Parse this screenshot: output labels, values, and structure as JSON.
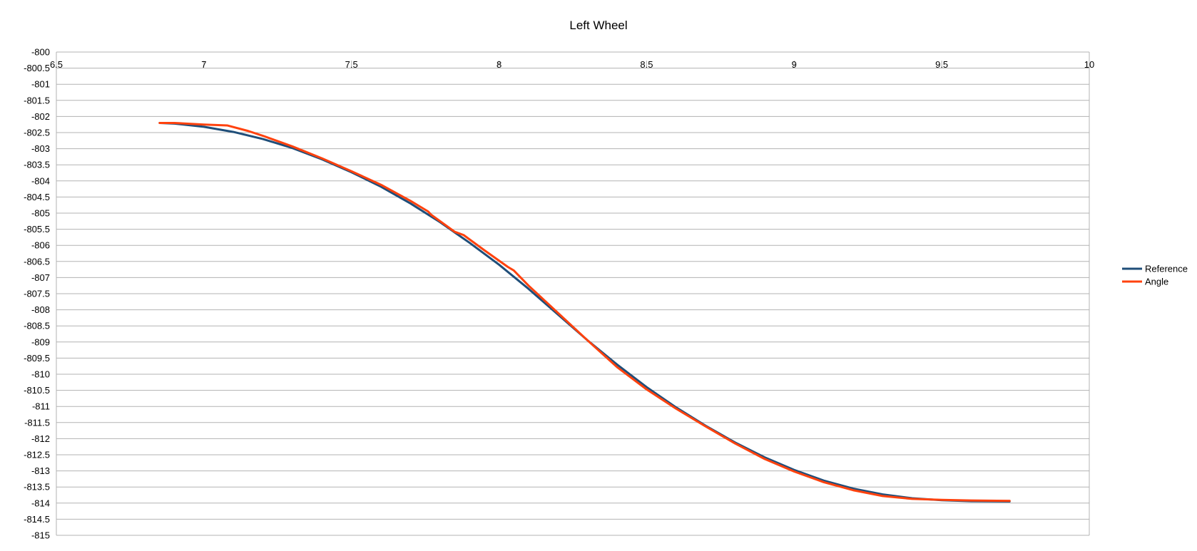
{
  "chart_data": {
    "type": "line",
    "title": "Left Wheel",
    "xlabel": "",
    "ylabel": "",
    "xlim": [
      6.5,
      10
    ],
    "ylim": [
      -815,
      -800
    ],
    "x_ticks": [
      6.5,
      7,
      7.5,
      8,
      8.5,
      9,
      9.5,
      10
    ],
    "x_tick_labels": [
      "6.5",
      "7",
      "7.5",
      "8",
      "8.5",
      "9",
      "9.5",
      "10"
    ],
    "y_ticks": [
      -800,
      -800.5,
      -801,
      -801.5,
      -802,
      -802.5,
      -803,
      -803.5,
      -804,
      -804.5,
      -805,
      -805.5,
      -806,
      -806.5,
      -807,
      -807.5,
      -808,
      -808.5,
      -809,
      -809.5,
      -810,
      -810.5,
      -811,
      -811.5,
      -812,
      -812.5,
      -813,
      -813.5,
      -814,
      -814.5,
      -815
    ],
    "y_tick_labels": [
      "-800",
      "-800.5",
      "-801",
      "-801.5",
      "-802",
      "-802.5",
      "-803",
      "-803.5",
      "-804",
      "-804.5",
      "-805",
      "-805.5",
      "-806",
      "-806.5",
      "-807",
      "-807.5",
      "-808",
      "-808.5",
      "-809",
      "-809.5",
      "-810",
      "-810.5",
      "-811",
      "-811.5",
      "-812",
      "-812.5",
      "-813",
      "-813.5",
      "-814",
      "-814.5",
      "-815"
    ],
    "x_axis_position": "top",
    "grid": true,
    "legend": "right",
    "series": [
      {
        "name": "Reference",
        "color": "#1f4e79",
        "x": [
          6.85,
          6.9,
          7.0,
          7.1,
          7.2,
          7.3,
          7.4,
          7.5,
          7.6,
          7.7,
          7.8,
          7.9,
          8.0,
          8.1,
          8.2,
          8.3,
          8.4,
          8.5,
          8.6,
          8.7,
          8.8,
          8.9,
          9.0,
          9.1,
          9.2,
          9.3,
          9.4,
          9.5,
          9.6,
          9.73
        ],
        "y": [
          -802.2,
          -802.22,
          -802.32,
          -802.48,
          -802.7,
          -802.98,
          -803.33,
          -803.73,
          -804.18,
          -804.7,
          -805.28,
          -805.92,
          -806.6,
          -807.35,
          -808.15,
          -808.95,
          -809.7,
          -810.4,
          -811.03,
          -811.6,
          -812.12,
          -812.58,
          -812.97,
          -813.3,
          -813.55,
          -813.73,
          -813.85,
          -813.91,
          -813.94,
          -813.95
        ]
      },
      {
        "name": "Angle",
        "color": "#ff420e",
        "x": [
          6.85,
          6.9,
          7.0,
          7.08,
          7.15,
          7.2,
          7.3,
          7.4,
          7.5,
          7.6,
          7.7,
          7.76,
          7.77,
          7.85,
          7.88,
          7.95,
          8.03,
          8.05,
          8.1,
          8.2,
          8.3,
          8.4,
          8.5,
          8.6,
          8.7,
          8.8,
          8.9,
          9.0,
          9.1,
          9.2,
          9.3,
          9.4,
          9.5,
          9.6,
          9.73
        ],
        "y": [
          -802.2,
          -802.2,
          -802.25,
          -802.28,
          -802.45,
          -802.6,
          -802.93,
          -803.3,
          -803.7,
          -804.12,
          -804.62,
          -804.95,
          -805.05,
          -805.58,
          -805.68,
          -806.15,
          -806.67,
          -806.78,
          -807.25,
          -808.1,
          -808.95,
          -809.78,
          -810.47,
          -811.07,
          -811.62,
          -812.15,
          -812.63,
          -813.02,
          -813.35,
          -813.6,
          -813.78,
          -813.87,
          -813.9,
          -813.92,
          -813.93
        ]
      }
    ]
  }
}
